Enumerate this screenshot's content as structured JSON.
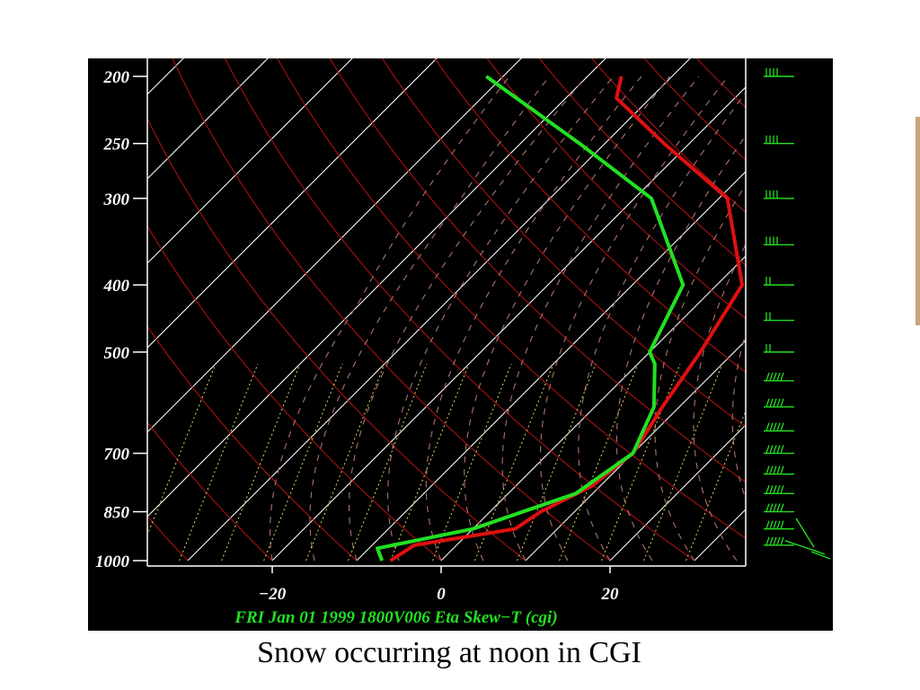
{
  "caption": "Snow occurring at noon in CGI",
  "colors": {
    "background": "#000000",
    "temperature": "#e01010",
    "dewpoint": "#22e022",
    "isotherm": "#ffffff",
    "dry_adiabat": "#a01010",
    "moist_adiabat": "#b07070",
    "mixing_ratio": "#d8d860",
    "wind_barbs": "#22e022",
    "footer_text": "#22e022"
  },
  "chart_data": {
    "type": "line",
    "title": "FRI Jan 01 1999 1800V006 Eta Skew−T (cgi)",
    "x_tick_labels": [
      "−20",
      "0",
      "20"
    ],
    "x_ticks": [
      -20,
      0,
      20
    ],
    "y_tick_labels": [
      "200",
      "250",
      "300",
      "400",
      "500",
      "700",
      "850",
      "1000"
    ],
    "y_ticks": [
      200,
      250,
      300,
      400,
      500,
      700,
      850,
      1000
    ],
    "y_scale": "log",
    "y_range": [
      195,
      1000
    ],
    "x_range_at_1000hPa": [
      -35,
      35
    ],
    "series": [
      {
        "color": "#e01010",
        "points": [
          [
            1000,
            -6
          ],
          [
            950,
            -5
          ],
          [
            900,
            5
          ],
          [
            850,
            6
          ],
          [
            780,
            9
          ],
          [
            700,
            10
          ],
          [
            600,
            8
          ],
          [
            500,
            6
          ],
          [
            400,
            3
          ],
          [
            300,
            -9
          ],
          [
            250,
            -23
          ],
          [
            215,
            -34
          ],
          [
            200,
            -36
          ]
        ]
      },
      {
        "color": "#22e022",
        "points": [
          [
            1000,
            -7
          ],
          [
            960,
            -9
          ],
          [
            900,
            0
          ],
          [
            800,
            8
          ],
          [
            700,
            10
          ],
          [
            600,
            7
          ],
          [
            520,
            2
          ],
          [
            500,
            0
          ],
          [
            400,
            -4
          ],
          [
            300,
            -18
          ],
          [
            250,
            -33
          ],
          [
            200,
            -52
          ]
        ]
      }
    ],
    "wind_levels": [
      200,
      250,
      300,
      350,
      400,
      450,
      500,
      550,
      600,
      650,
      700,
      750,
      800,
      850,
      900,
      950
    ]
  }
}
